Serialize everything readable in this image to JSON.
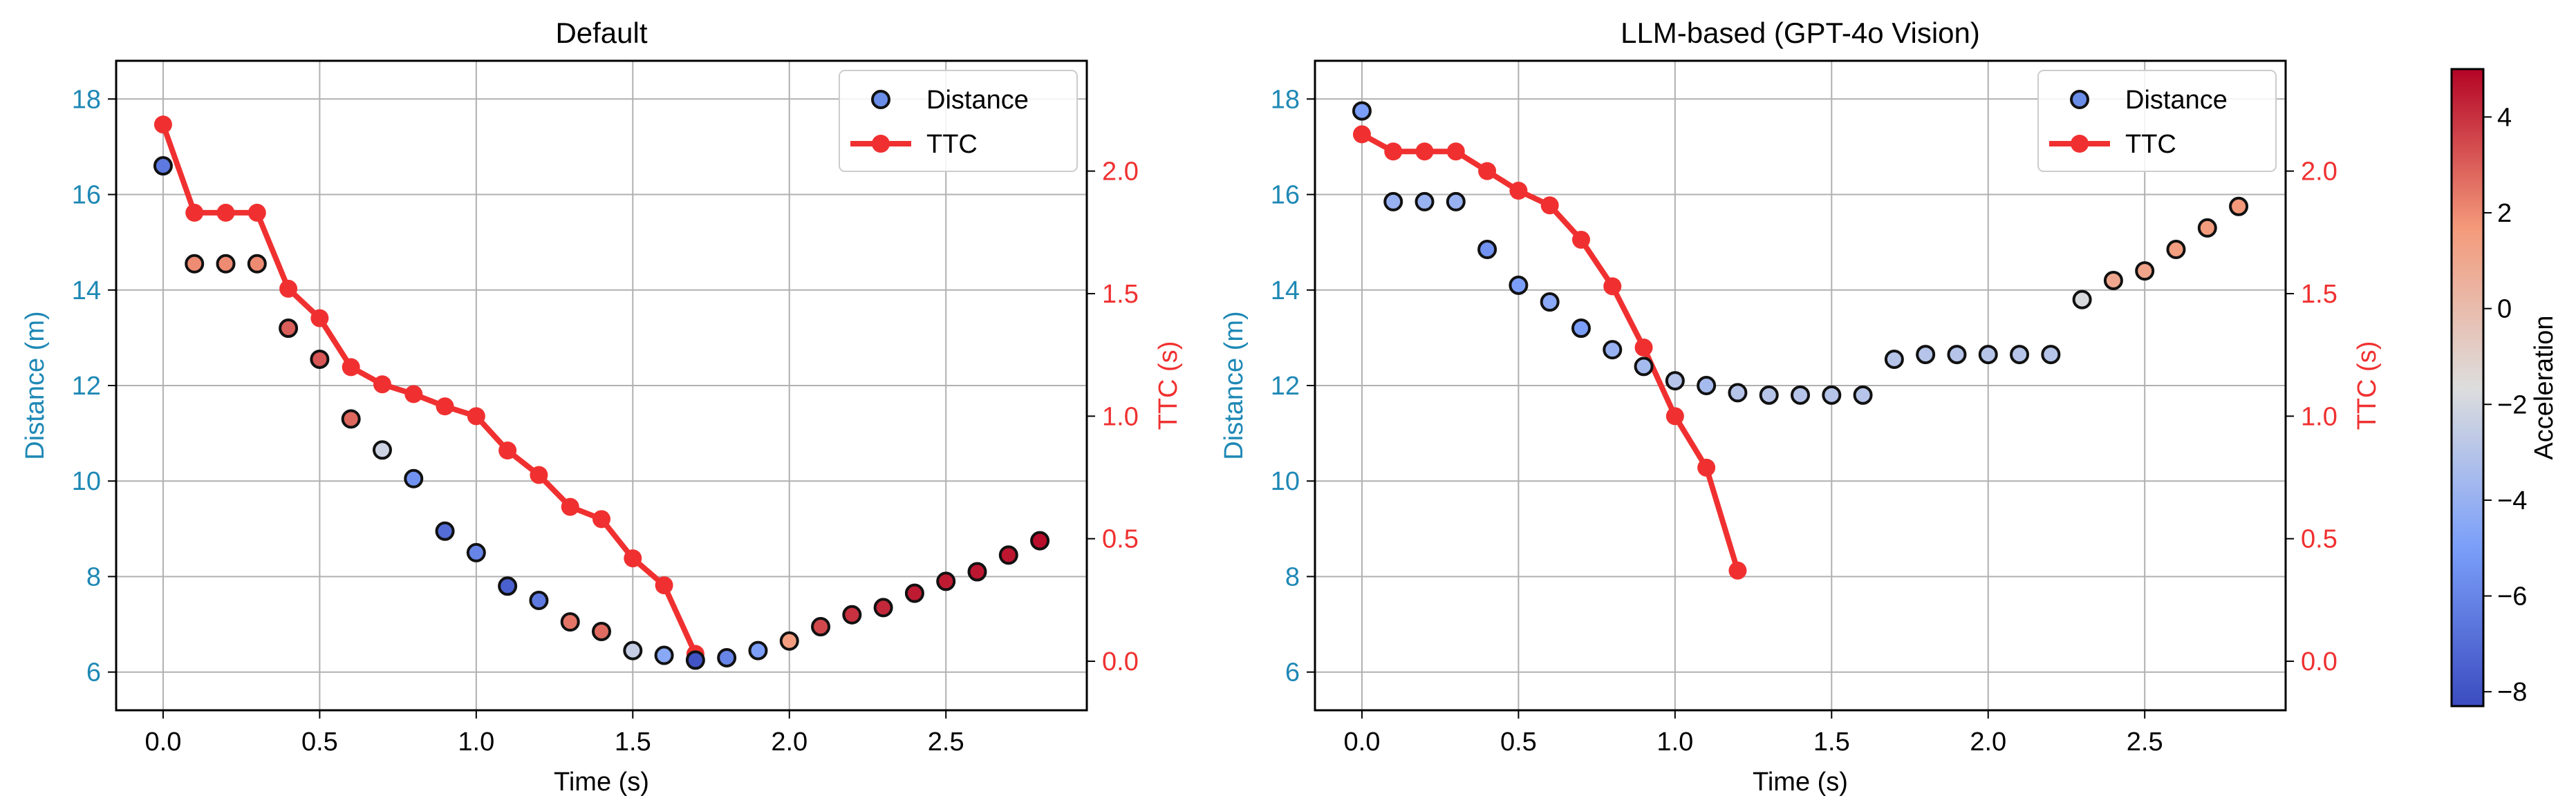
{
  "chart_data": [
    {
      "type": "scatter",
      "title": "Default",
      "xlabel": "Time (s)",
      "ylabel": "Distance (m)",
      "ylabel_right": "TTC (s)",
      "xlim": [
        -0.15,
        2.95
      ],
      "ylim": [
        5.2,
        18.8
      ],
      "ylim_right": [
        -0.2,
        2.45
      ],
      "xticks": [
        "0.0",
        "0.5",
        "1.0",
        "1.5",
        "2.0",
        "2.5"
      ],
      "yticks": [
        "6",
        "8",
        "10",
        "12",
        "14",
        "16",
        "18"
      ],
      "yticks_right": [
        "0.0",
        "0.5",
        "1.0",
        "1.5",
        "2.0"
      ],
      "legend": [
        "Distance",
        "TTC"
      ],
      "series": [
        {
          "name": "Distance",
          "x": [
            0.0,
            0.1,
            0.2,
            0.3,
            0.4,
            0.5,
            0.6,
            0.7,
            0.8,
            0.9,
            1.0,
            1.1,
            1.2,
            1.3,
            1.4,
            1.5,
            1.6,
            1.7,
            1.8,
            1.9,
            2.0,
            2.1,
            2.2,
            2.3,
            2.4,
            2.5,
            2.6,
            2.7,
            2.8
          ],
          "y": [
            16.6,
            14.55,
            14.55,
            14.55,
            13.2,
            12.55,
            11.3,
            10.65,
            10.05,
            8.95,
            8.5,
            7.8,
            7.5,
            7.05,
            6.85,
            6.45,
            6.35,
            6.25,
            6.3,
            6.45,
            6.65,
            6.95,
            7.2,
            7.35,
            7.65,
            7.9,
            8.1,
            8.45,
            8.75
          ],
          "acceleration": [
            -6.5,
            2.0,
            2.0,
            2.0,
            3.0,
            3.2,
            2.8,
            -2.2,
            -5.5,
            -7.0,
            -6.0,
            -7.5,
            -6.5,
            2.5,
            2.7,
            -2.5,
            -4.5,
            -8.0,
            -6.0,
            -5.0,
            1.5,
            3.5,
            4.0,
            4.2,
            4.5,
            4.5,
            4.6,
            4.6,
            4.8
          ]
        },
        {
          "name": "TTC",
          "x": [
            0.0,
            0.1,
            0.2,
            0.3,
            0.4,
            0.5,
            0.6,
            0.7,
            0.8,
            0.9,
            1.0,
            1.1,
            1.2,
            1.3,
            1.4,
            1.5,
            1.6,
            1.7
          ],
          "y": [
            2.19,
            1.83,
            1.83,
            1.83,
            1.52,
            1.4,
            1.2,
            1.13,
            1.09,
            1.04,
            1.0,
            0.86,
            0.76,
            0.63,
            0.58,
            0.42,
            0.31,
            0.03
          ]
        }
      ]
    },
    {
      "type": "scatter",
      "title": "LLM-based (GPT-4o Vision)",
      "xlabel": "Time (s)",
      "ylabel": "Distance (m)",
      "ylabel_right": "TTC (s)",
      "xlim": [
        -0.15,
        2.95
      ],
      "ylim": [
        5.2,
        18.8
      ],
      "ylim_right": [
        -0.2,
        2.45
      ],
      "xticks": [
        "0.0",
        "0.5",
        "1.0",
        "1.5",
        "2.0",
        "2.5"
      ],
      "yticks": [
        "6",
        "8",
        "10",
        "12",
        "14",
        "16",
        "18"
      ],
      "yticks_right": [
        "0.0",
        "0.5",
        "1.0",
        "1.5",
        "2.0"
      ],
      "legend": [
        "Distance",
        "TTC"
      ],
      "series": [
        {
          "name": "Distance",
          "x": [
            0.0,
            0.1,
            0.2,
            0.3,
            0.4,
            0.5,
            0.6,
            0.7,
            0.8,
            0.9,
            1.0,
            1.1,
            1.2,
            1.3,
            1.4,
            1.5,
            1.6,
            1.7,
            1.8,
            1.9,
            2.0,
            2.1,
            2.2,
            2.3,
            2.4,
            2.5,
            2.6,
            2.7,
            2.8
          ],
          "y": [
            17.75,
            15.85,
            15.85,
            15.85,
            14.85,
            14.1,
            13.75,
            13.2,
            12.75,
            12.4,
            12.1,
            12.0,
            11.85,
            11.8,
            11.8,
            11.8,
            11.8,
            12.55,
            12.65,
            12.65,
            12.65,
            12.65,
            12.65,
            13.8,
            14.2,
            14.4,
            14.85,
            15.3,
            15.75
          ],
          "acceleration": [
            -5.0,
            -4.0,
            -4.0,
            -4.0,
            -5.5,
            -5.0,
            -4.5,
            -5.0,
            -4.0,
            -3.5,
            -3.0,
            -3.5,
            -3.0,
            -3.0,
            -3.0,
            -3.0,
            -3.0,
            -3.0,
            -3.0,
            -3.0,
            -3.0,
            -3.0,
            -3.0,
            -1.8,
            1.0,
            1.2,
            1.5,
            1.6,
            1.7
          ]
        },
        {
          "name": "TTC",
          "x": [
            0.0,
            0.1,
            0.2,
            0.3,
            0.4,
            0.5,
            0.6,
            0.7,
            0.8,
            0.9,
            1.0,
            1.1,
            1.2
          ],
          "y": [
            2.15,
            2.08,
            2.08,
            2.08,
            2.0,
            1.92,
            1.86,
            1.72,
            1.53,
            1.28,
            1.0,
            0.79,
            0.37
          ]
        }
      ]
    },
    {
      "type": "colorbar",
      "label": "Acceleration",
      "range": [
        -8.3,
        5.0
      ],
      "ticks": [
        "4",
        "2",
        "0",
        "−2",
        "−4",
        "−6",
        "−8"
      ],
      "tick_values": [
        4,
        2,
        0,
        -2,
        -4,
        -6,
        -8
      ]
    }
  ],
  "colors": {
    "distance_axis": "#1e88b5",
    "ttc": "#f03030",
    "frame": "#000000",
    "grid": "#b0b0b0",
    "legend_marker": "#6a8de8"
  }
}
